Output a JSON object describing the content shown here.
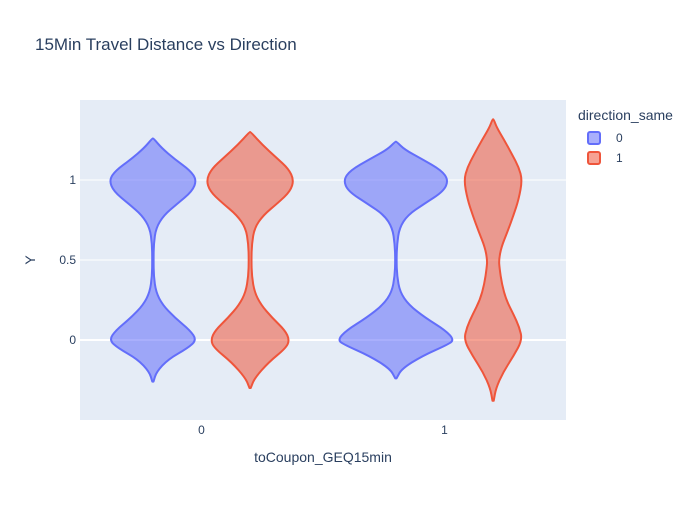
{
  "chart_data": {
    "type": "violin",
    "title": "15Min Travel Distance vs Direction",
    "xlabel": "toCoupon_GEQ15min",
    "ylabel": "Y",
    "categories": [
      "0",
      "1"
    ],
    "ylim": [
      -0.5,
      1.5
    ],
    "yticks": [
      0,
      0.5,
      1
    ],
    "ytick_labels": [
      "0",
      "0.5",
      "1"
    ],
    "grid": true,
    "legend_title": "direction_same",
    "legend_position": "top-right",
    "series": [
      {
        "name": "0",
        "color": "#636efa",
        "violins": [
          {
            "category": "0",
            "ymin": -0.26,
            "ymax": 1.26,
            "peak_halfwidth": 0.09,
            "profile": [
              [
                -0.26,
                0.0
              ],
              [
                -0.2,
                0.08
              ],
              [
                -0.12,
                0.35
              ],
              [
                -0.05,
                0.8
              ],
              [
                0.0,
                1.0
              ],
              [
                0.06,
                0.85
              ],
              [
                0.14,
                0.5
              ],
              [
                0.22,
                0.22
              ],
              [
                0.3,
                0.07
              ],
              [
                0.4,
                0.02
              ],
              [
                0.5,
                0.015
              ],
              [
                0.6,
                0.02
              ],
              [
                0.7,
                0.07
              ],
              [
                0.78,
                0.25
              ],
              [
                0.85,
                0.55
              ],
              [
                0.93,
                0.9
              ],
              [
                1.0,
                1.0
              ],
              [
                1.06,
                0.85
              ],
              [
                1.13,
                0.5
              ],
              [
                1.2,
                0.2
              ],
              [
                1.26,
                0.0
              ]
            ]
          },
          {
            "category": "1",
            "ymin": -0.24,
            "ymax": 1.24,
            "peak_halfwidth": 0.12,
            "profile": [
              [
                -0.24,
                0.0
              ],
              [
                -0.18,
                0.1
              ],
              [
                -0.1,
                0.45
              ],
              [
                -0.03,
                0.88
              ],
              [
                0.0,
                1.0
              ],
              [
                0.06,
                0.85
              ],
              [
                0.14,
                0.5
              ],
              [
                0.22,
                0.22
              ],
              [
                0.3,
                0.07
              ],
              [
                0.4,
                0.02
              ],
              [
                0.5,
                0.01
              ],
              [
                0.6,
                0.02
              ],
              [
                0.7,
                0.06
              ],
              [
                0.78,
                0.2
              ],
              [
                0.85,
                0.48
              ],
              [
                0.93,
                0.82
              ],
              [
                1.0,
                0.9
              ],
              [
                1.06,
                0.78
              ],
              [
                1.13,
                0.45
              ],
              [
                1.19,
                0.15
              ],
              [
                1.24,
                0.0
              ]
            ]
          }
        ]
      },
      {
        "name": "1",
        "color": "#ef553b",
        "violins": [
          {
            "category": "0",
            "ymin": -0.3,
            "ymax": 1.3,
            "peak_halfwidth": 0.09,
            "profile": [
              [
                -0.3,
                0.0
              ],
              [
                -0.24,
                0.1
              ],
              [
                -0.14,
                0.42
              ],
              [
                -0.05,
                0.82
              ],
              [
                0.0,
                0.9
              ],
              [
                0.06,
                0.8
              ],
              [
                0.14,
                0.5
              ],
              [
                0.22,
                0.25
              ],
              [
                0.3,
                0.1
              ],
              [
                0.4,
                0.04
              ],
              [
                0.5,
                0.03
              ],
              [
                0.6,
                0.04
              ],
              [
                0.7,
                0.1
              ],
              [
                0.78,
                0.3
              ],
              [
                0.86,
                0.65
              ],
              [
                0.93,
                0.92
              ],
              [
                1.0,
                1.0
              ],
              [
                1.07,
                0.88
              ],
              [
                1.14,
                0.6
              ],
              [
                1.22,
                0.28
              ],
              [
                1.3,
                0.0
              ]
            ]
          },
          {
            "category": "1",
            "ymin": -0.38,
            "ymax": 1.38,
            "peak_halfwidth": 0.06,
            "profile": [
              [
                -0.38,
                0.0
              ],
              [
                -0.3,
                0.1
              ],
              [
                -0.2,
                0.35
              ],
              [
                -0.1,
                0.7
              ],
              [
                0.0,
                1.0
              ],
              [
                0.08,
                0.9
              ],
              [
                0.16,
                0.7
              ],
              [
                0.25,
                0.45
              ],
              [
                0.35,
                0.3
              ],
              [
                0.45,
                0.22
              ],
              [
                0.5,
                0.2
              ],
              [
                0.58,
                0.28
              ],
              [
                0.68,
                0.5
              ],
              [
                0.78,
                0.7
              ],
              [
                0.88,
                0.88
              ],
              [
                1.0,
                1.0
              ],
              [
                1.08,
                0.88
              ],
              [
                1.16,
                0.65
              ],
              [
                1.25,
                0.38
              ],
              [
                1.33,
                0.12
              ],
              [
                1.38,
                0.0
              ]
            ]
          }
        ]
      }
    ]
  }
}
